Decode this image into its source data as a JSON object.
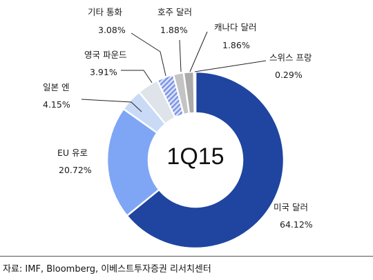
{
  "chart_data": {
    "type": "pie",
    "center_label": "1Q15",
    "slices": [
      {
        "name": "미국 달러",
        "value": 64.12,
        "label": "64.12%",
        "color": "#1f45a0",
        "pattern": "none"
      },
      {
        "name": "EU 유로",
        "value": 20.72,
        "label": "20.72%",
        "color": "#7fa6f5",
        "pattern": "none"
      },
      {
        "name": "일본 엔",
        "value": 4.15,
        "label": "4.15%",
        "color": "#c8daf6",
        "pattern": "none"
      },
      {
        "name": "영국 파운드",
        "value": 3.91,
        "label": "3.91%",
        "color": "#dfe3ea",
        "pattern": "none"
      },
      {
        "name": "기타 통화",
        "value": 3.08,
        "label": "3.08%",
        "color": "#8ea2e6",
        "pattern": "hatch"
      },
      {
        "name": "호주 달러",
        "value": 1.88,
        "label": "1.88%",
        "color": "#c4c4c4",
        "pattern": "none"
      },
      {
        "name": "캐나다 달러",
        "value": 1.86,
        "label": "1.86%",
        "color": "#ababab",
        "pattern": "none"
      },
      {
        "name": "스위스 프랑",
        "value": 0.29,
        "label": "0.29%",
        "color": "#6e6e6e",
        "pattern": "none"
      }
    ]
  },
  "source": "자료: IMF, Bloomberg, 이베스트투자증권 리서치센터"
}
